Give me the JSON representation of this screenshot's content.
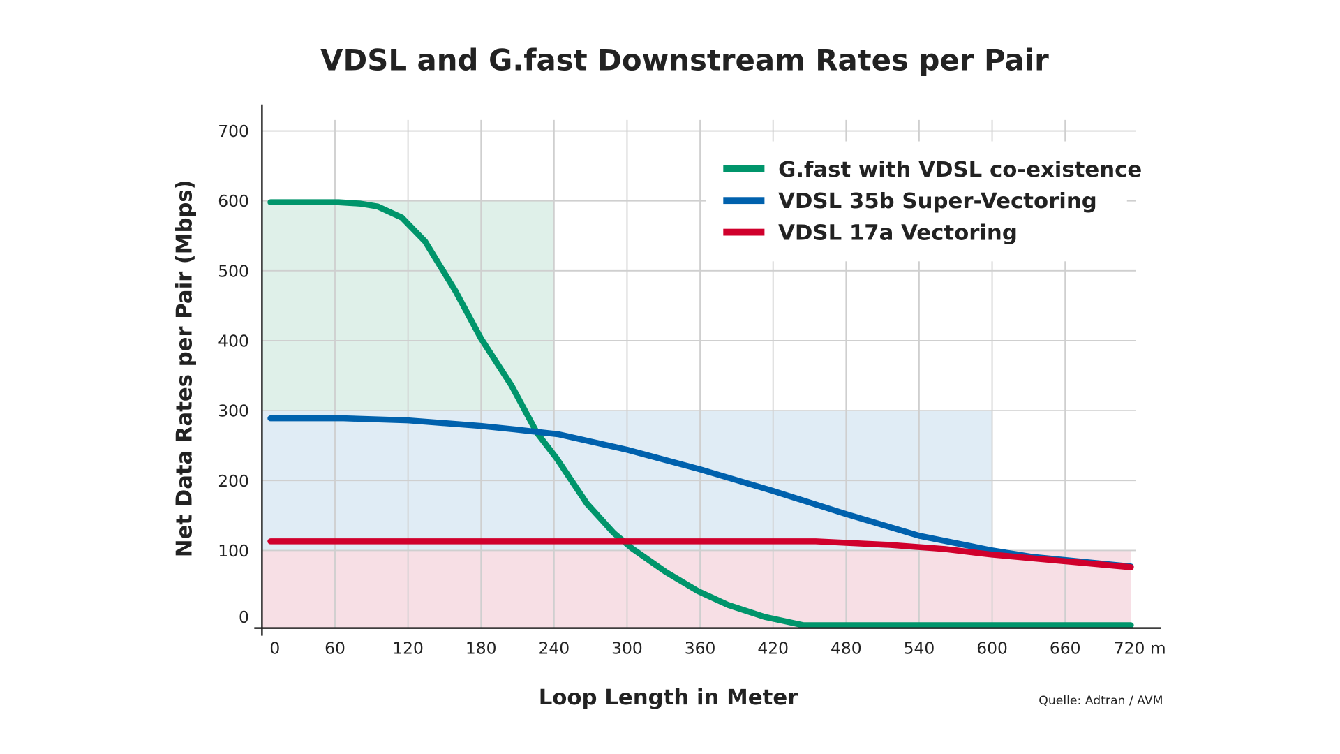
{
  "chart_data": {
    "type": "line",
    "title": "VDSL and G.fast Downstream Rates per Pair",
    "xlabel": "Loop Length in Meter",
    "ylabel": "Net Data Rates per Pair (Mbps)",
    "source": "Quelle: Adtran / AVM",
    "xlim": [
      0,
      720
    ],
    "ylim": [
      0,
      700
    ],
    "x_ticks": [
      "0",
      "60",
      "120",
      "180",
      "240",
      "300",
      "360",
      "420",
      "480",
      "540",
      "600",
      "660",
      "720 m"
    ],
    "y_ticks": [
      "0",
      "100",
      "200",
      "300",
      "400",
      "500",
      "600",
      "700"
    ],
    "grid": true,
    "legend_position": "top-right",
    "shaded_regions": [
      {
        "x": [
          0,
          240
        ],
        "y": [
          300,
          600
        ],
        "color": "#dff0e9"
      },
      {
        "x": [
          0,
          600
        ],
        "y": [
          100,
          300
        ],
        "color": "#e0ecf5"
      },
      {
        "x": [
          0,
          714
        ],
        "y": [
          0,
          100
        ],
        "color": "#f7dfe5"
      }
    ],
    "series": [
      {
        "name": "G.fast with VDSL co-existence",
        "color": "#00956b",
        "x": [
          7,
          63,
          81,
          95,
          115,
          134,
          159,
          180,
          205,
          226,
          242,
          267,
          289,
          304,
          332,
          358,
          383,
          413,
          445,
          561,
          600,
          714
        ],
        "y": [
          598,
          598,
          596,
          592,
          576,
          542,
          471,
          403,
          336,
          268,
          232,
          167,
          125,
          103,
          69,
          42,
          22,
          5,
          0,
          0,
          0,
          0
        ]
      },
      {
        "name": "VDSL 35b Super-Vectoring",
        "color": "#0061ad",
        "x": [
          7,
          67,
          120,
          180,
          208,
          244,
          300,
          360,
          420,
          480,
          540,
          600,
          632,
          714
        ],
        "y": [
          289,
          289,
          286,
          278,
          273,
          266,
          244,
          216,
          185,
          152,
          121,
          100,
          91,
          77
        ]
      },
      {
        "name": "VDSL 17a Vectoring",
        "color": "#d0002c",
        "x": [
          7,
          455,
          515,
          561,
          600,
          714
        ],
        "y": [
          113,
          113,
          108,
          102,
          94,
          76
        ]
      }
    ]
  }
}
